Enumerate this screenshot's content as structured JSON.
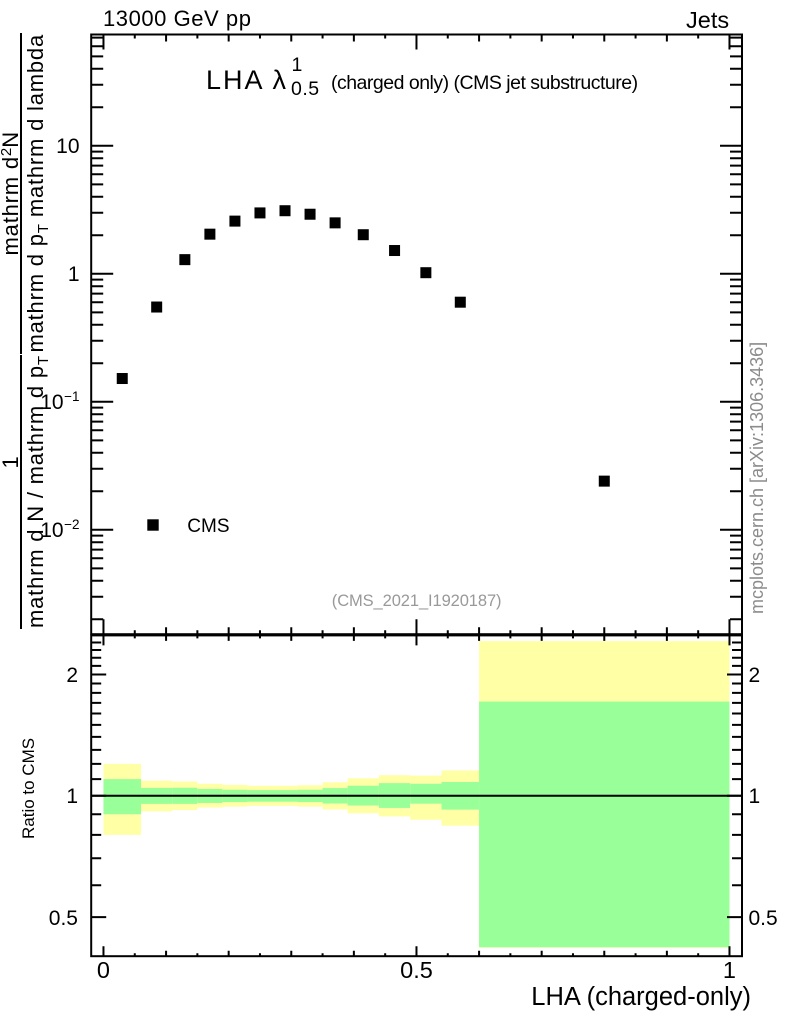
{
  "header": {
    "left": "13000 GeV pp",
    "right": "Jets"
  },
  "panel_title": {
    "prefix": "LHA ",
    "lambda": "λ",
    "sup": "1",
    "sub": "0.5",
    "suffix": " (charged only) (CMS jet substructure)"
  },
  "watermark": {
    "analysis": "(CMS_2021_I1920187)",
    "site": "mcplots.cern.ch [arXiv:1306.3436]"
  },
  "legend": {
    "label": "CMS",
    "marker": "filled-square-icon"
  },
  "axes": {
    "x_title": "LHA (charged-only)",
    "ratio_y_title": "Ratio to CMS",
    "y_title_parts": {
      "frac1_num": "1",
      "frac1_den_main": "mathrm d N / mathrm d p",
      "frac1_den_sub": "T",
      "frac2_num_main": "mathrm d",
      "frac2_num_sup": "2",
      "frac2_num_end": "N",
      "frac2_den_a": "mathrm d p",
      "frac2_den_sub": "T",
      "frac2_den_b": " mathrm d lambda"
    }
  },
  "colors": {
    "outer_band": "#ffffa6",
    "inner_band": "#99ff99",
    "marker": "#000000",
    "frame": "#000000",
    "gray_text": "#999999"
  },
  "chart_data": {
    "type": "scatter",
    "title": "LHA lambda_0.5^1 (charged only) (CMS jet substructure)",
    "xlabel": "LHA (charged-only)",
    "ylabel": "1/(dN/dp_T) d^2N/(dp_T dlambda)",
    "x_frame_range": [
      -0.0196,
      1.02
    ],
    "x_tick_labels": [
      {
        "v": 0,
        "label": "0"
      },
      {
        "v": 0.5,
        "label": "0.5"
      },
      {
        "v": 1,
        "label": "1"
      }
    ],
    "bin_edges": [
      0,
      0.06,
      0.11,
      0.15,
      0.19,
      0.23,
      0.27,
      0.31,
      0.35,
      0.39,
      0.44,
      0.49,
      0.54,
      0.6,
      1.0
    ],
    "main_panel": {
      "yscale": "log",
      "ylim": [
        0.0015287,
        74.05
      ],
      "y_tick_labels": [
        {
          "v": 10,
          "base": "10",
          "sup": ""
        },
        {
          "v": 1,
          "base": "1",
          "sup": ""
        },
        {
          "v": 0.1,
          "base": "10",
          "sup": "−1"
        },
        {
          "v": 0.01,
          "base": "10",
          "sup": "−2"
        }
      ],
      "series": [
        {
          "name": "CMS",
          "marker": "filled-square",
          "values": [
            0.152,
            0.55,
            1.29,
            2.04,
            2.58,
            2.99,
            3.11,
            2.92,
            2.5,
            2.02,
            1.52,
            1.02,
            0.6,
            0.024
          ]
        }
      ]
    },
    "ratio_panel": {
      "ylabel": "Ratio to CMS",
      "yscale": "log",
      "ylim": [
        0.4,
        2.5
      ],
      "y_tick_labels": [
        {
          "v": 2,
          "label": "2"
        },
        {
          "v": 1,
          "label": "1"
        },
        {
          "v": 0.5,
          "label": "0.5"
        }
      ],
      "reference_line": 1,
      "outer_band": {
        "lo": [
          0.8,
          0.915,
          0.922,
          0.935,
          0.94,
          0.944,
          0.944,
          0.94,
          0.925,
          0.905,
          0.889,
          0.872,
          0.843,
          0.42
        ],
        "hi": [
          1.2,
          1.09,
          1.085,
          1.071,
          1.064,
          1.059,
          1.059,
          1.062,
          1.08,
          1.105,
          1.125,
          1.122,
          1.156,
          2.42
        ]
      },
      "inner_band": {
        "lo": [
          0.9,
          0.955,
          0.955,
          0.96,
          0.965,
          0.967,
          0.967,
          0.965,
          0.957,
          0.946,
          0.933,
          0.956,
          0.924,
          0.421
        ],
        "hi": [
          1.1,
          1.046,
          1.047,
          1.04,
          1.035,
          1.033,
          1.033,
          1.035,
          1.045,
          1.059,
          1.075,
          1.071,
          1.082,
          1.713
        ]
      }
    }
  }
}
